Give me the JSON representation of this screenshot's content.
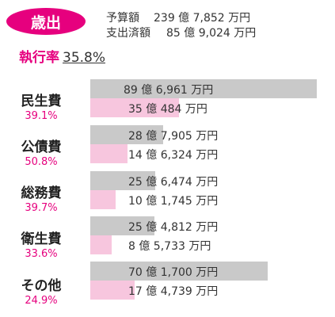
{
  "header": {
    "badge": "歳出",
    "budget_label": "予算額",
    "budget_value": "239 億 7,852 万円",
    "spent_label": "支出済額",
    "spent_value": "85 億 9,024 万円"
  },
  "execution": {
    "label": "執行率",
    "value": "35.8%",
    "rate": 0.358
  },
  "colors": {
    "accent": "#e6007e",
    "budget_bar": "#c9c9c9",
    "spent_bar": "#f7c6de"
  },
  "categories": [
    {
      "name": "民生費",
      "rate": "39.1%",
      "budget": "89 億 6,961 万円",
      "spent": "35 億 484 万円",
      "budget_oku": 89.6961,
      "spent_oku": 35.0484
    },
    {
      "name": "公債費",
      "rate": "50.8%",
      "budget": "28 億 7,905 万円",
      "spent": "14 億 6,324 万円",
      "budget_oku": 28.7905,
      "spent_oku": 14.6324
    },
    {
      "name": "総務費",
      "rate": "39.7%",
      "budget": "25 億 6,474 万円",
      "spent": "10 億 1,745 万円",
      "budget_oku": 25.6474,
      "spent_oku": 10.1745
    },
    {
      "name": "衛生費",
      "rate": "33.6%",
      "budget": "25 億 4,812 万円",
      "spent": "8 億 5,733 万円",
      "budget_oku": 25.4812,
      "spent_oku": 8.5733
    },
    {
      "name": "その他",
      "rate": "24.9%",
      "budget": "70 億 1,700 万円",
      "spent": "17 億 4,739 万円",
      "budget_oku": 70.17,
      "spent_oku": 17.4739
    }
  ]
}
